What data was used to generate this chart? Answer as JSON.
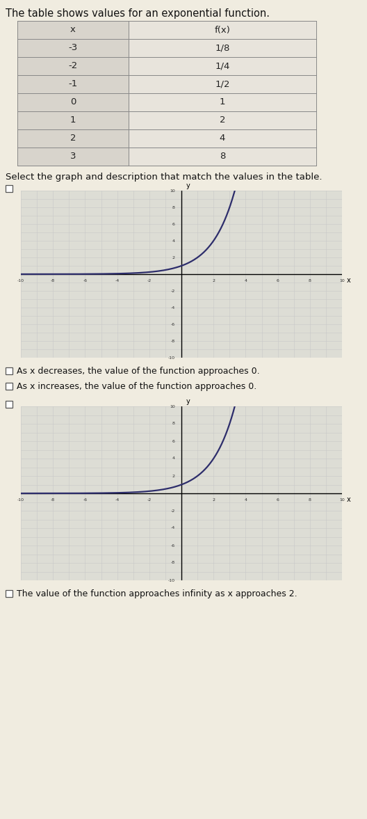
{
  "title": "The table shows values for an exponential function.",
  "select_text": "Select the graph and description that match the values in the table.",
  "table_headers": [
    "x",
    "f(x)"
  ],
  "table_rows": [
    [
      "-3",
      "1/8"
    ],
    [
      "-2",
      "1/4"
    ],
    [
      "-1",
      "1/2"
    ],
    [
      "0",
      "1"
    ],
    [
      "1",
      "2"
    ],
    [
      "2",
      "4"
    ],
    [
      "3",
      "8"
    ]
  ],
  "curve_color": "#2d2d6b",
  "grid_color": "#c8c8c8",
  "bg_color": "#ddddd5",
  "page_bg": "#f0ece0",
  "table_left_bg": "#d8d4cc",
  "table_right_bg": "#e8e4dc",
  "border_color": "#888888",
  "checkbox_options": [
    "As x decreases, the value of the function approaches 0.",
    "As x increases, the value of the function approaches 0.",
    "The value of the function approaches infinity as x approaches 2."
  ],
  "font_size_title": 10.5,
  "font_size_table": 9.5,
  "font_size_select": 9.5,
  "font_size_option": 9.0,
  "fig_w": 528,
  "fig_h": 1177
}
